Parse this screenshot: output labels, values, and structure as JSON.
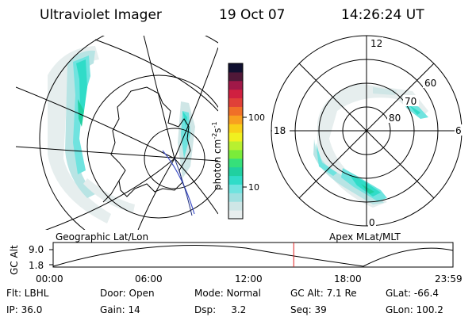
{
  "header": {
    "instrument": "Ultraviolet Imager",
    "date": "19 Oct 07",
    "time": "14:26:24 UT"
  },
  "left_panel": {
    "caption": "Geographic Lat/Lon"
  },
  "right_panel": {
    "caption": "Apex MLat/MLT",
    "mlt_labels": [
      "12",
      "18",
      "6",
      "0"
    ],
    "mlat_labels": [
      "60",
      "70",
      "80"
    ]
  },
  "colorbar": {
    "label": "photon cm",
    "label_sup1": "-2",
    "label_s": "s",
    "label_sup2": "-1",
    "tick_100": "100",
    "tick_10": "10",
    "colors": [
      "#e8eeee",
      "#cfe6e6",
      "#9fe0e0",
      "#6fe3df",
      "#30dcc8",
      "#20d0a0",
      "#36e07a",
      "#7aec3a",
      "#b8f030",
      "#f0f020",
      "#f8d018",
      "#f8a020",
      "#f07028",
      "#e04038",
      "#d02040",
      "#a01848",
      "#501838",
      "#101030"
    ]
  },
  "altitude_track": {
    "axis_title": "GC Alt",
    "y_labels": [
      "9.0",
      "1.8"
    ],
    "x_labels": [
      "00:00",
      "06:00",
      "12:00",
      "18:00",
      "23:59"
    ],
    "current_time_hours": 14.44
  },
  "status": {
    "row1": [
      {
        "label": "Flt: LBHL"
      },
      {
        "label": "Door: Open"
      },
      {
        "label": "Mode: Normal"
      },
      {
        "label": "GC Alt: 7.1 Re"
      },
      {
        "label": "GLat: -66.4"
      }
    ],
    "row2": [
      {
        "label": "IP: 36.0"
      },
      {
        "label": "Gain: 14"
      },
      {
        "label": "Dsp:     3.2"
      },
      {
        "label": "Seq: 39"
      },
      {
        "label": "GLon: 100.2"
      }
    ]
  }
}
